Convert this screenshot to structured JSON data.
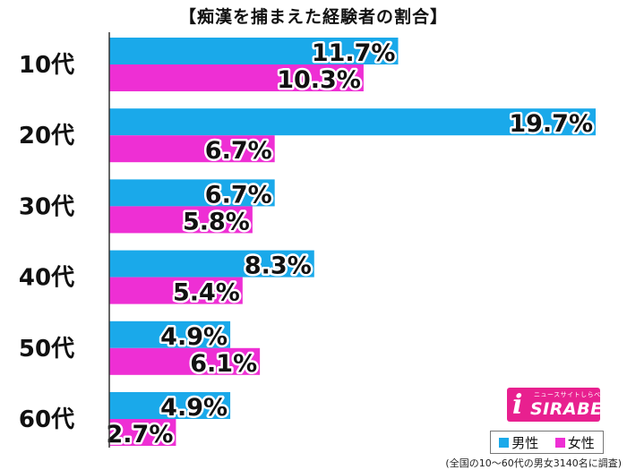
{
  "title": "【痴漢を捕まえた経験者の割合】",
  "colors": {
    "male": "#1aa9ea",
    "female": "#ee2fd4"
  },
  "legend": {
    "male": "男性",
    "female": "女性"
  },
  "logo": {
    "name": "SIRABEE",
    "tagline": "ニュースサイトしらべぇ",
    "mark": "i"
  },
  "footnote": "(全国の10～60代の男女3140名に調査)",
  "chart_data": {
    "type": "bar",
    "orientation": "horizontal",
    "title": "【痴漢を捕まえた経験者の割合】",
    "categories": [
      "10代",
      "20代",
      "30代",
      "40代",
      "50代",
      "60代"
    ],
    "series": [
      {
        "name": "男性",
        "values": [
          11.7,
          19.7,
          6.7,
          8.3,
          4.9,
          4.9
        ],
        "labels": [
          "11.7%",
          "19.7%",
          "6.7%",
          "8.3%",
          "4.9%",
          "4.9%"
        ],
        "color": "#1aa9ea"
      },
      {
        "name": "女性",
        "values": [
          10.3,
          6.7,
          5.8,
          5.4,
          6.1,
          2.7
        ],
        "labels": [
          "10.3%",
          "6.7%",
          "5.8%",
          "5.4%",
          "6.1%",
          "2.7%"
        ],
        "color": "#ee2fd4"
      }
    ],
    "unit": "%",
    "xlim": [
      0,
      19.7
    ],
    "grid": false,
    "legend_position": "bottom-right"
  }
}
